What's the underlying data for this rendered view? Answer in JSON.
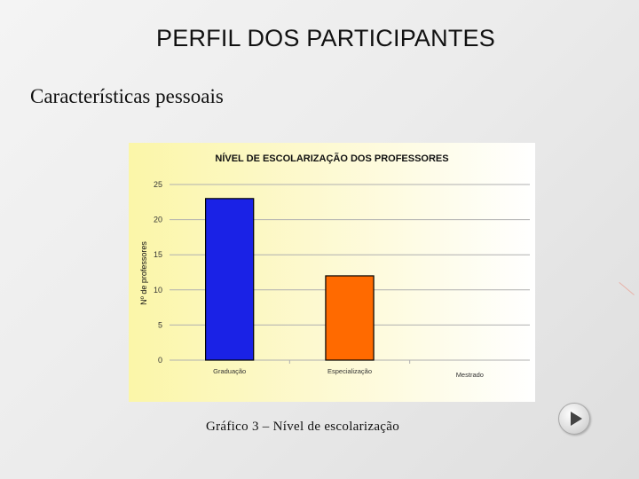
{
  "slide": {
    "title": "PERFIL DOS PARTICIPANTES",
    "subtitle": "Características pessoais",
    "caption": "Gráfico 3 – Nível de escolarização"
  },
  "navigation": {
    "next_icon": "play-triangle-icon"
  },
  "colors": {
    "bar_blue": "#1a22e6",
    "bar_orange": "#ff6a00",
    "grid": "#b0b0b0"
  },
  "chart_data": {
    "type": "bar",
    "title": "NÍVEL DE ESCOLARIZAÇÃO DOS PROFESSORES",
    "xlabel": "",
    "ylabel": "Nº de professores",
    "categories": [
      "Graduação",
      "Especialização",
      "Mestrado"
    ],
    "values": [
      23,
      12,
      0
    ],
    "bar_colors": [
      "#1a22e6",
      "#ff6a00",
      "#1a22e6"
    ],
    "ylim": [
      0,
      25
    ],
    "yticks": [
      0,
      5,
      10,
      15,
      20,
      25
    ],
    "grid": true,
    "legend": "none"
  }
}
